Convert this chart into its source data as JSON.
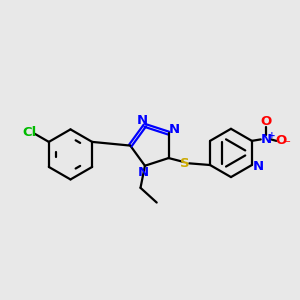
{
  "bg_color": "#e8e8e8",
  "bond_color": "#000000",
  "N_color": "#0000ff",
  "O_color": "#ff0000",
  "S_color": "#ccaa00",
  "Cl_color": "#00bb00",
  "line_width": 1.6,
  "figsize": [
    3.0,
    3.0
  ],
  "dpi": 100,
  "xlim": [
    0,
    10
  ],
  "ylim": [
    0,
    10
  ],
  "font_size": 9.5
}
